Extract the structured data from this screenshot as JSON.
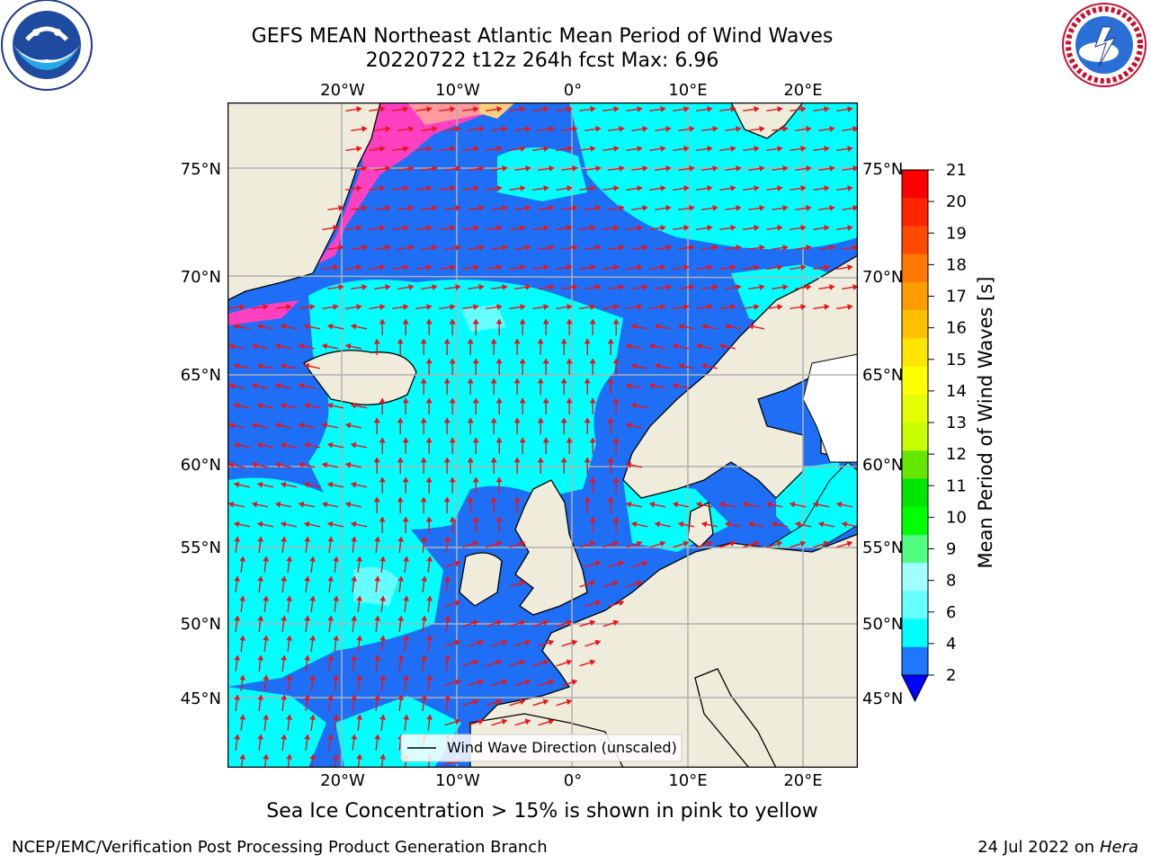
{
  "header": {
    "title_line1": "GEFS MEAN Northeast Atlantic Mean Period of Wind Waves",
    "title_line2": "20220722 t12z 264h fcst   Max: 6.96"
  },
  "logos": {
    "left": "NOAA",
    "right": "NATIONAL WEATHER SERVICE"
  },
  "map": {
    "lon_labels_top": [
      "20°W",
      "10°W",
      "0°",
      "10°E",
      "20°E"
    ],
    "lon_labels_bottom": [
      "20°W",
      "10°W",
      "0°",
      "10°E",
      "20°E"
    ],
    "lat_labels_left": [
      "75°N",
      "70°N",
      "65°N",
      "60°N",
      "55°N",
      "50°N",
      "45°N"
    ],
    "lat_labels_right": [
      "75°N",
      "70°N",
      "65°N",
      "60°N",
      "55°N",
      "50°N",
      "45°N"
    ],
    "legend_label": "Wind Wave Direction (unscaled)",
    "colors": {
      "land": "#efecdc",
      "deep_blue": "#0000ff",
      "blue": "#1e6ff5",
      "cyan": "#00ffff",
      "light_cyan": "#66ffff",
      "arrow": "#e8151b"
    }
  },
  "colorbar": {
    "label": "Mean Period of Wind Waves [s]",
    "ticks": [
      "21",
      "20",
      "19",
      "18",
      "17",
      "16",
      "15",
      "14",
      "13",
      "12",
      "11",
      "10",
      "9",
      "8",
      "6",
      "4",
      "2"
    ],
    "colors": [
      "#ff0000",
      "#ff2400",
      "#ff4a00",
      "#ff7800",
      "#ff9d00",
      "#ffc000",
      "#ffe600",
      "#ffff00",
      "#e6ff00",
      "#c8ff00",
      "#64e600",
      "#00e600",
      "#00ff00",
      "#50ff80",
      "#a0ffff",
      "#66ffff",
      "#00ffff",
      "#1e78ff"
    ],
    "extend_color": "#0000ff"
  },
  "bottom_note": "Sea Ice Concentration > 15% is shown in pink to yellow",
  "footer": {
    "left": "NCEP/EMC/Verification Post Processing Product Generation Branch",
    "right_date": "24 Jul 2022 on ",
    "right_host": "Hera"
  }
}
